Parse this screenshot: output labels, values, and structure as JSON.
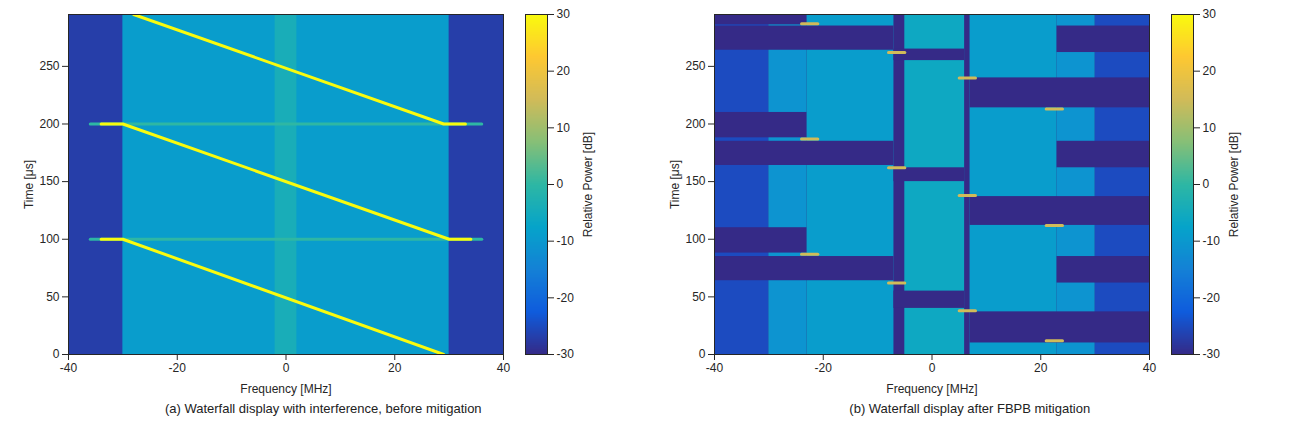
{
  "chart_data": [
    {
      "type": "heatmap",
      "title": "(a) Waterfall display with interference, before mitigation",
      "x_label": "Frequency [MHz]",
      "y_label": "Time [μs]",
      "xlim": [
        -40,
        40
      ],
      "xticks": [
        -40,
        -20,
        0,
        20,
        40
      ],
      "ylim": [
        0,
        295
      ],
      "yticks": [
        0,
        50,
        100,
        150,
        200,
        250
      ],
      "colorbar": {
        "label": "Relative Power [dB]",
        "range": [
          -30,
          30
        ],
        "ticks": [
          -30,
          -20,
          -10,
          0,
          10,
          20,
          30
        ]
      },
      "cells": [
        {
          "x0": -40,
          "x1": 40,
          "y0": 0,
          "y1": 295,
          "value": -27
        },
        {
          "x0": -30,
          "x1": 30,
          "y0": 0,
          "y1": 295,
          "value": -9
        },
        {
          "x0": -2,
          "x1": 2,
          "y0": 0,
          "y1": 295,
          "value": -4
        }
      ],
      "lines": [
        {
          "x": [
            -36,
            36
          ],
          "y": [
            100,
            100
          ],
          "value": 0
        },
        {
          "x": [
            -36,
            36
          ],
          "y": [
            200,
            200
          ],
          "value": 0
        },
        {
          "x": [
            -34,
            -30,
            29
          ],
          "y": [
            100,
            100,
            0
          ],
          "value": 30
        },
        {
          "x": [
            -34,
            -30,
            30,
            34
          ],
          "y": [
            200,
            200,
            100,
            100
          ],
          "value": 30
        },
        {
          "x": [
            -28,
            29,
            33
          ],
          "y": [
            295,
            200,
            200
          ],
          "value": 30
        }
      ]
    },
    {
      "type": "heatmap",
      "title": "(b) Waterfall display after FBPB mitigation",
      "x_label": "Frequency [MHz]",
      "y_label": "Time [μs]",
      "xlim": [
        -40,
        40
      ],
      "xticks": [
        -40,
        -20,
        0,
        20,
        40
      ],
      "ylim": [
        0,
        295
      ],
      "yticks": [
        0,
        50,
        100,
        150,
        200,
        250
      ],
      "colorbar": {
        "label": "Relative Power [dB]",
        "range": [
          -30,
          30
        ],
        "ticks": [
          -30,
          -20,
          -10,
          0,
          10,
          20,
          30
        ]
      },
      "cells": [
        {
          "x0": -40,
          "x1": 40,
          "y0": 0,
          "y1": 295,
          "value": -30
        },
        {
          "x0": -40,
          "x1": -30,
          "y0": 0,
          "y1": 295,
          "value": -25
        },
        {
          "x0": 30,
          "x1": 40,
          "y0": 0,
          "y1": 295,
          "value": -25
        },
        {
          "x0": -30,
          "x1": -23,
          "y0": 0,
          "y1": 295,
          "value": -11
        },
        {
          "x0": 23,
          "x1": 30,
          "y0": 0,
          "y1": 295,
          "value": -11
        },
        {
          "x0": -23,
          "x1": -7,
          "y0": 0,
          "y1": 295,
          "value": -9
        },
        {
          "x0": -5,
          "x1": 6,
          "y0": 0,
          "y1": 295,
          "value": -6
        },
        {
          "x0": 7,
          "x1": 23,
          "y0": 0,
          "y1": 295,
          "value": -9
        },
        {
          "x0": -40,
          "x1": -7,
          "y0": 264,
          "y1": 285,
          "value": -30
        },
        {
          "x0": -40,
          "x1": -7,
          "y0": 164,
          "y1": 185,
          "value": -30
        },
        {
          "x0": -40,
          "x1": -7,
          "y0": 64,
          "y1": 85,
          "value": -30
        },
        {
          "x0": -40,
          "x1": -23,
          "y0": 286,
          "y1": 295,
          "value": -30
        },
        {
          "x0": -40,
          "x1": -23,
          "y0": 188,
          "y1": 210,
          "value": -30
        },
        {
          "x0": -40,
          "x1": -23,
          "y0": 88,
          "y1": 110,
          "value": -30
        },
        {
          "x0": -7,
          "x1": 6,
          "y0": 255,
          "y1": 265,
          "value": -30
        },
        {
          "x0": -7,
          "x1": 6,
          "y0": 150,
          "y1": 162,
          "value": -30
        },
        {
          "x0": -7,
          "x1": 6,
          "y0": 40,
          "y1": 55,
          "value": -30
        },
        {
          "x0": 7,
          "x1": 40,
          "y0": 214,
          "y1": 240,
          "value": -30
        },
        {
          "x0": 7,
          "x1": 40,
          "y0": 112,
          "y1": 137,
          "value": -30
        },
        {
          "x0": 7,
          "x1": 40,
          "y0": 10,
          "y1": 37,
          "value": -30
        },
        {
          "x0": 23,
          "x1": 40,
          "y0": 262,
          "y1": 285,
          "value": -30
        },
        {
          "x0": 23,
          "x1": 40,
          "y0": 162,
          "y1": 185,
          "value": -30
        },
        {
          "x0": 23,
          "x1": 40,
          "y0": 62,
          "y1": 85,
          "value": -30
        }
      ],
      "lines": [
        {
          "x": [
            -24,
            -21
          ],
          "y": [
            287,
            287
          ],
          "value": 15
        },
        {
          "x": [
            -8,
            -5
          ],
          "y": [
            262,
            262
          ],
          "value": 15
        },
        {
          "x": [
            5,
            8
          ],
          "y": [
            240,
            240
          ],
          "value": 15
        },
        {
          "x": [
            21,
            24
          ],
          "y": [
            213,
            213
          ],
          "value": 15
        },
        {
          "x": [
            -24,
            -21
          ],
          "y": [
            187,
            187
          ],
          "value": 15
        },
        {
          "x": [
            -8,
            -5
          ],
          "y": [
            162,
            162
          ],
          "value": 15
        },
        {
          "x": [
            5,
            8
          ],
          "y": [
            138,
            138
          ],
          "value": 15
        },
        {
          "x": [
            21,
            24
          ],
          "y": [
            112,
            112
          ],
          "value": 15
        },
        {
          "x": [
            -24,
            -21
          ],
          "y": [
            87,
            87
          ],
          "value": 15
        },
        {
          "x": [
            -8,
            -5
          ],
          "y": [
            62,
            62
          ],
          "value": 15
        },
        {
          "x": [
            5,
            8
          ],
          "y": [
            38,
            38
          ],
          "value": 15
        },
        {
          "x": [
            21,
            24
          ],
          "y": [
            12,
            12
          ],
          "value": 15
        }
      ]
    }
  ]
}
